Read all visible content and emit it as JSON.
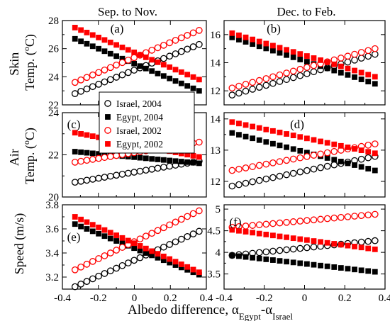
{
  "figure": {
    "column_titles": [
      "Sep. to Nov.",
      "Dec. to Feb."
    ],
    "row_labels": [
      [
        "Skin",
        "Temp. (",
        "o",
        "C)"
      ],
      [
        "Air",
        "Temp. (",
        "o",
        "C)"
      ],
      [
        "Speed (m/s)"
      ]
    ],
    "xlabel": {
      "main": "Albedo difference, α",
      "sub1": "Egypt",
      "mid": "-α",
      "sub2": "Israel"
    },
    "legend": [
      {
        "label": "Israel, 2004",
        "color": "#000000",
        "marker": "open-circle"
      },
      {
        "label": "Egypt, 2004",
        "color": "#000000",
        "marker": "filled-square"
      },
      {
        "label": "Israel, 2002",
        "color": "#ff0000",
        "marker": "open-circle"
      },
      {
        "label": "Egypt, 2002",
        "color": "#ff0000",
        "marker": "filled-square"
      }
    ]
  },
  "chart_data": [
    {
      "panel": "(a)",
      "type": "scatter",
      "xlim": [
        -0.4,
        0.4
      ],
      "ylim": [
        22,
        28
      ],
      "xticks": [
        "-0.4",
        "-0.2",
        "0",
        "0.2",
        "0.4"
      ],
      "xtick_labels_shown": false,
      "yticks": [
        "22",
        "24",
        "26",
        "28"
      ],
      "series": [
        {
          "name": "Israel, 2004",
          "x0": -0.33,
          "x1": 0.36,
          "y0": 22.8,
          "y1": 26.3
        },
        {
          "name": "Egypt, 2004",
          "x0": -0.33,
          "x1": 0.36,
          "y0": 26.7,
          "y1": 23.0
        },
        {
          "name": "Israel, 2002",
          "x0": -0.33,
          "x1": 0.36,
          "y0": 23.6,
          "y1": 27.3
        },
        {
          "name": "Egypt, 2002",
          "x0": -0.33,
          "x1": 0.36,
          "y0": 27.5,
          "y1": 23.8
        }
      ]
    },
    {
      "panel": "(b)",
      "type": "scatter",
      "xlim": [
        -0.4,
        0.4
      ],
      "ylim": [
        11,
        17
      ],
      "xticks": [
        "-0.4",
        "-0.2",
        "0",
        "0.2",
        "0.4"
      ],
      "xtick_labels_shown": false,
      "yticks": [
        "12",
        "14",
        "16"
      ],
      "series": [
        {
          "name": "Israel, 2004",
          "x0": -0.36,
          "x1": 0.35,
          "y0": 11.7,
          "y1": 14.6
        },
        {
          "name": "Egypt, 2004",
          "x0": -0.36,
          "x1": 0.35,
          "y0": 15.8,
          "y1": 12.5
        },
        {
          "name": "Israel, 2002",
          "x0": -0.36,
          "x1": 0.35,
          "y0": 12.2,
          "y1": 15.0
        },
        {
          "name": "Egypt, 2002",
          "x0": -0.36,
          "x1": 0.35,
          "y0": 16.1,
          "y1": 13.0
        }
      ]
    },
    {
      "panel": "(c)",
      "type": "scatter",
      "xlim": [
        -0.4,
        0.4
      ],
      "ylim": [
        20,
        24
      ],
      "xticks": [
        "-0.4",
        "-0.2",
        "0",
        "0.2",
        "0.4"
      ],
      "xtick_labels_shown": false,
      "yticks": [
        "20",
        "22",
        "24"
      ],
      "series": [
        {
          "name": "Israel, 2004",
          "x0": -0.33,
          "x1": 0.36,
          "y0": 20.7,
          "y1": 21.7
        },
        {
          "name": "Egypt, 2004",
          "x0": -0.33,
          "x1": 0.36,
          "y0": 22.15,
          "y1": 21.6
        },
        {
          "name": "Israel, 2002",
          "x0": -0.33,
          "x1": 0.36,
          "y0": 21.65,
          "y1": 22.6
        },
        {
          "name": "Egypt, 2002",
          "x0": -0.33,
          "x1": 0.36,
          "y0": 23.05,
          "y1": 21.9
        }
      ]
    },
    {
      "panel": "(d)",
      "type": "scatter",
      "xlim": [
        -0.4,
        0.4
      ],
      "ylim": [
        11.5,
        14.2
      ],
      "xticks": [
        "-0.4",
        "-0.2",
        "0",
        "0.2",
        "0.4"
      ],
      "xtick_labels_shown": false,
      "yticks": [
        "12",
        "13",
        "14"
      ],
      "series": [
        {
          "name": "Israel, 2004",
          "x0": -0.36,
          "x1": 0.35,
          "y0": 11.85,
          "y1": 12.8
        },
        {
          "name": "Egypt, 2004",
          "x0": -0.36,
          "x1": 0.35,
          "y0": 13.55,
          "y1": 12.35
        },
        {
          "name": "Israel, 2002",
          "x0": -0.36,
          "x1": 0.35,
          "y0": 12.35,
          "y1": 13.2
        },
        {
          "name": "Egypt, 2002",
          "x0": -0.36,
          "x1": 0.35,
          "y0": 13.9,
          "y1": 12.9
        }
      ]
    },
    {
      "panel": "(e)",
      "type": "scatter",
      "xlim": [
        -0.4,
        0.4
      ],
      "ylim": [
        3.1,
        3.8
      ],
      "xticks": [
        "-0.4",
        "-0.2",
        "0",
        "0.2",
        "0.4"
      ],
      "xtick_labels_shown": true,
      "yticks": [
        "3.2",
        "3.4",
        "3.6",
        "3.8"
      ],
      "series": [
        {
          "name": "Israel, 2004",
          "x0": -0.33,
          "x1": 0.36,
          "y0": 3.12,
          "y1": 3.58
        },
        {
          "name": "Egypt, 2004",
          "x0": -0.33,
          "x1": 0.36,
          "y0": 3.64,
          "y1": 3.22
        },
        {
          "name": "Israel, 2002",
          "x0": -0.33,
          "x1": 0.36,
          "y0": 3.26,
          "y1": 3.75
        },
        {
          "name": "Egypt, 2002",
          "x0": -0.33,
          "x1": 0.36,
          "y0": 3.7,
          "y1": 3.24
        }
      ]
    },
    {
      "panel": "(f)",
      "type": "scatter",
      "xlim": [
        -0.4,
        0.4
      ],
      "ylim": [
        3.15,
        5.1
      ],
      "xticks": [
        "-0.4",
        "-0.2",
        "0",
        "0.2",
        "0.4"
      ],
      "xtick_labels_shown": true,
      "yticks": [
        "3.5",
        "4",
        "4.5",
        "5"
      ],
      "series": [
        {
          "name": "Israel, 2004",
          "x0": -0.36,
          "x1": 0.35,
          "y0": 3.93,
          "y1": 4.27
        },
        {
          "name": "Egypt, 2004",
          "x0": -0.36,
          "x1": 0.35,
          "y0": 3.93,
          "y1": 3.55
        },
        {
          "name": "Israel, 2002",
          "x0": -0.36,
          "x1": 0.35,
          "y0": 4.58,
          "y1": 4.88
        },
        {
          "name": "Egypt, 2002",
          "x0": -0.36,
          "x1": 0.35,
          "y0": 4.52,
          "y1": 4.07
        }
      ]
    }
  ]
}
